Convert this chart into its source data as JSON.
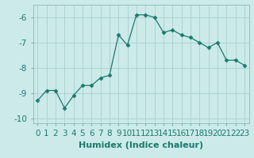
{
  "x": [
    0,
    1,
    2,
    3,
    4,
    5,
    6,
    7,
    8,
    9,
    10,
    11,
    12,
    13,
    14,
    15,
    16,
    17,
    18,
    19,
    20,
    21,
    22,
    23
  ],
  "y": [
    -9.3,
    -8.9,
    -8.9,
    -9.6,
    -9.1,
    -8.7,
    -8.7,
    -8.4,
    -8.3,
    -6.7,
    -7.1,
    -5.9,
    -5.9,
    -6.0,
    -6.6,
    -6.5,
    -6.7,
    -6.8,
    -7.0,
    -7.2,
    -7.0,
    -7.7,
    -7.7,
    -7.9
  ],
  "line_color": "#1a7a6e",
  "marker": "D",
  "marker_size": 2.5,
  "bg_color": "#cceaea",
  "grid_color": "#aacfcf",
  "xlabel": "Humidex (Indice chaleur)",
  "ylim": [
    -10.2,
    -5.5
  ],
  "xlim": [
    -0.5,
    23.5
  ],
  "yticks": [
    -10,
    -9,
    -8,
    -7,
    -6
  ],
  "xticks": [
    0,
    1,
    2,
    3,
    4,
    5,
    6,
    7,
    8,
    9,
    10,
    11,
    12,
    13,
    14,
    15,
    16,
    17,
    18,
    19,
    20,
    21,
    22,
    23
  ],
  "xlabel_fontsize": 8,
  "tick_fontsize": 7.5
}
